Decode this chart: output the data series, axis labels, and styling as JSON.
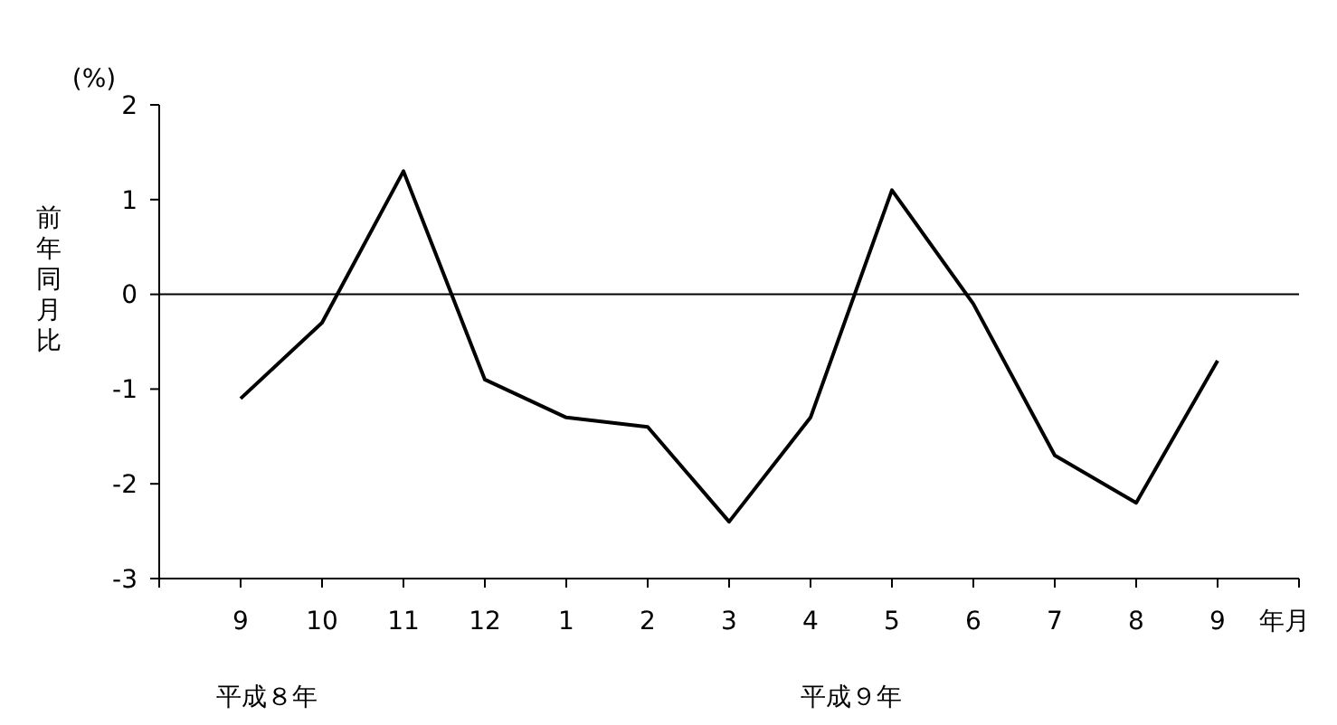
{
  "chart_data": {
    "type": "line",
    "xlabel": "年月",
    "ylabel": "前年同月比",
    "categories": [
      "9",
      "10",
      "11",
      "12",
      "1",
      "2",
      "3",
      "4",
      "5",
      "6",
      "7",
      "8",
      "9"
    ],
    "series": [
      {
        "color": "#000000",
        "values": [
          -1.1,
          -0.3,
          1.3,
          -0.9,
          -1.3,
          -1.4,
          -2.4,
          -1.3,
          1.1,
          -0.1,
          -1.7,
          -2.2,
          -0.7
        ]
      }
    ],
    "ylim": [
      -3,
      2
    ],
    "yticks": [
      -3,
      -2,
      -1,
      0,
      1,
      2
    ],
    "ref_lines": [
      {
        "axis": "y",
        "value": 0,
        "color": "#000000"
      }
    ],
    "annotations": [
      "(%)",
      "平成８年",
      "平成９年"
    ],
    "grid": false,
    "marker": "none",
    "line_style": "solid"
  }
}
